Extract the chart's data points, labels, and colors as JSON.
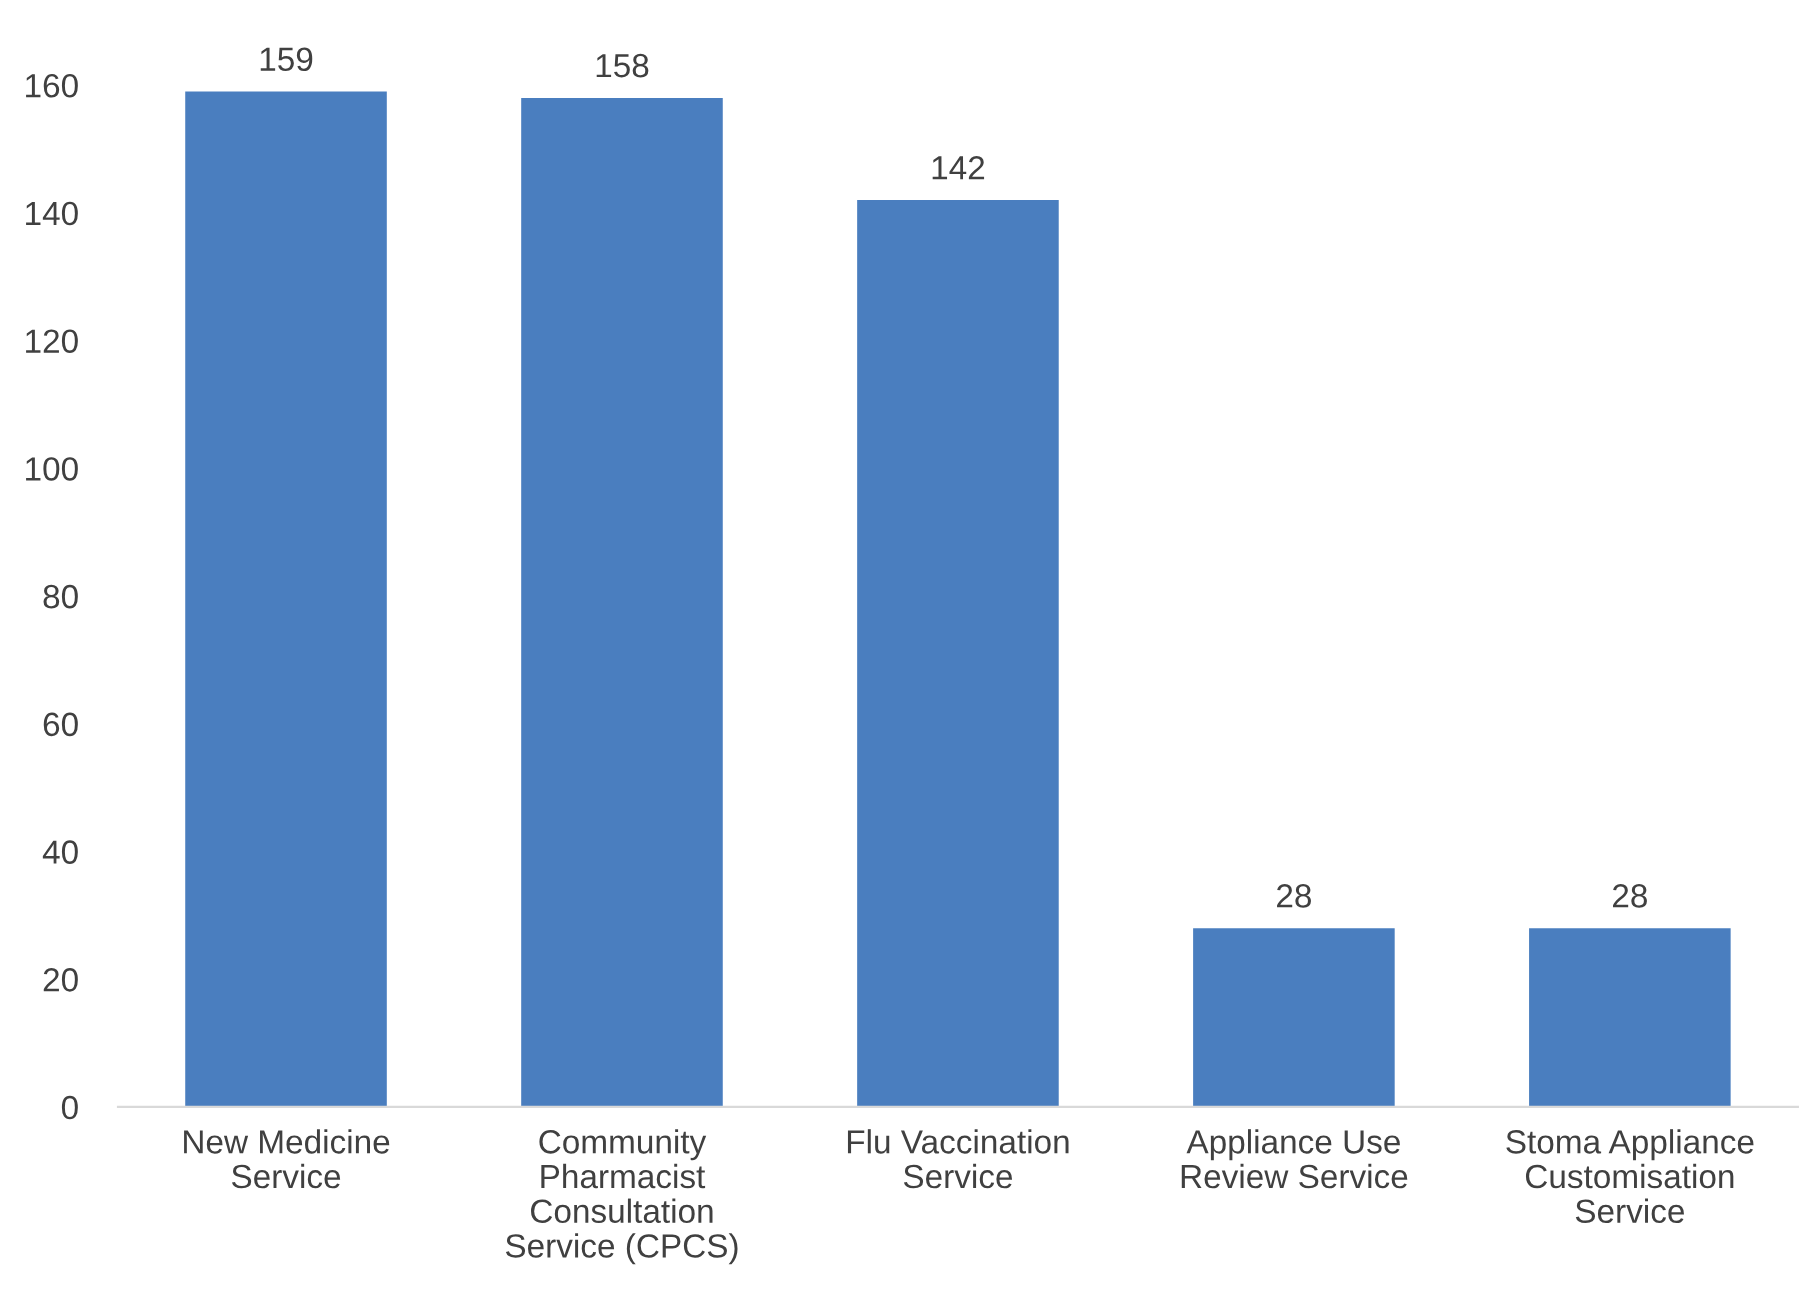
{
  "chart_data": {
    "type": "bar",
    "categories": [
      "New Medicine\nService",
      "Community\nPharmacist\nConsultation\nService (CPCS)",
      "Flu Vaccination\nService",
      "Appliance Use\nReview Service",
      "Stoma Appliance\nCustomisation\nService"
    ],
    "values": [
      159,
      158,
      142,
      28,
      28
    ],
    "color": "#4a7ebf",
    "ylim": [
      0,
      160
    ],
    "yticks": [
      0,
      20,
      40,
      60,
      80,
      100,
      120,
      140,
      160
    ],
    "grid": false,
    "data_labels": true
  }
}
